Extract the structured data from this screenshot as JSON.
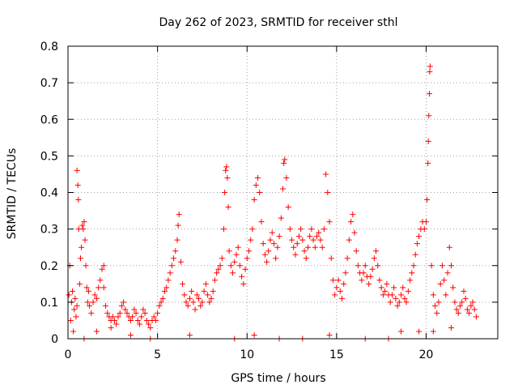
{
  "chart_data": {
    "type": "scatter",
    "title": "Day 262 of 2023, SRMTID for receiver sthl",
    "xlabel": "GPS time / hours",
    "ylabel": "SRMTID / TECUs",
    "xlim": [
      0,
      24
    ],
    "ylim": [
      0,
      0.8
    ],
    "xticks": [
      0,
      5,
      10,
      15,
      20
    ],
    "xtick_labels": [
      "0",
      "5",
      "10",
      "15",
      "20"
    ],
    "yticks": [
      0,
      0.1,
      0.2,
      0.3,
      0.4,
      0.5,
      0.6,
      0.7,
      0.8
    ],
    "ytick_labels": [
      "0",
      "0.1",
      "0.2",
      "0.3",
      "0.4",
      "0.5",
      "0.6",
      "0.7",
      "0.8"
    ],
    "grid": true,
    "marker": "plus",
    "color": "#ff0000",
    "series": [
      {
        "name": "SRMTID",
        "points": [
          [
            0.05,
            0.12
          ],
          [
            0.1,
            0.2
          ],
          [
            0.15,
            0.05
          ],
          [
            0.2,
            0.1
          ],
          [
            0.25,
            0.13
          ],
          [
            0.3,
            0.02
          ],
          [
            0.35,
            0.08
          ],
          [
            0.4,
            0.11
          ],
          [
            0.45,
            0.06
          ],
          [
            0.5,
            0.09
          ],
          [
            0.5,
            0.46
          ],
          [
            0.55,
            0.42
          ],
          [
            0.58,
            0.38
          ],
          [
            0.6,
            0.3
          ],
          [
            0.65,
            0.15
          ],
          [
            0.7,
            0.22
          ],
          [
            0.75,
            0.25
          ],
          [
            0.8,
            0.31
          ],
          [
            0.85,
            0.3
          ],
          [
            0.9,
            0.32
          ],
          [
            0.95,
            0.27
          ],
          [
            1.0,
            0.2
          ],
          [
            1.05,
            0.14
          ],
          [
            1.1,
            0.1
          ],
          [
            1.15,
            0.13
          ],
          [
            1.2,
            0.09
          ],
          [
            1.3,
            0.07
          ],
          [
            1.4,
            0.1
          ],
          [
            1.5,
            0.12
          ],
          [
            1.6,
            0.11
          ],
          [
            1.7,
            0.14
          ],
          [
            1.8,
            0.16
          ],
          [
            1.9,
            0.19
          ],
          [
            2.0,
            0.2
          ],
          [
            2.0,
            0.14
          ],
          [
            2.1,
            0.09
          ],
          [
            2.2,
            0.07
          ],
          [
            2.3,
            0.06
          ],
          [
            2.4,
            0.05
          ],
          [
            2.5,
            0.06
          ],
          [
            2.6,
            0.05
          ],
          [
            2.7,
            0.04
          ],
          [
            2.8,
            0.06
          ],
          [
            2.9,
            0.07
          ],
          [
            3.0,
            0.09
          ],
          [
            3.1,
            0.1
          ],
          [
            3.2,
            0.08
          ],
          [
            3.3,
            0.07
          ],
          [
            3.4,
            0.06
          ],
          [
            3.5,
            0.05
          ],
          [
            3.6,
            0.06
          ],
          [
            3.7,
            0.08
          ],
          [
            3.8,
            0.07
          ],
          [
            3.9,
            0.05
          ],
          [
            4.0,
            0.04
          ],
          [
            4.1,
            0.06
          ],
          [
            4.2,
            0.08
          ],
          [
            4.3,
            0.07
          ],
          [
            4.4,
            0.05
          ],
          [
            4.5,
            0.04
          ],
          [
            4.6,
            0.03
          ],
          [
            4.7,
            0.05
          ],
          [
            4.8,
            0.06
          ],
          [
            4.9,
            0.05
          ],
          [
            5.0,
            0.07
          ],
          [
            5.1,
            0.09
          ],
          [
            5.2,
            0.1
          ],
          [
            5.3,
            0.11
          ],
          [
            5.4,
            0.13
          ],
          [
            5.5,
            0.14
          ],
          [
            5.6,
            0.16
          ],
          [
            5.7,
            0.18
          ],
          [
            5.8,
            0.2
          ],
          [
            5.9,
            0.22
          ],
          [
            6.0,
            0.24
          ],
          [
            6.1,
            0.27
          ],
          [
            6.15,
            0.31
          ],
          [
            6.2,
            0.34
          ],
          [
            6.3,
            0.21
          ],
          [
            6.4,
            0.15
          ],
          [
            6.5,
            0.12
          ],
          [
            6.6,
            0.1
          ],
          [
            6.7,
            0.09
          ],
          [
            6.8,
            0.11
          ],
          [
            6.9,
            0.13
          ],
          [
            7.0,
            0.1
          ],
          [
            7.1,
            0.08
          ],
          [
            7.2,
            0.12
          ],
          [
            7.3,
            0.11
          ],
          [
            7.4,
            0.09
          ],
          [
            7.5,
            0.1
          ],
          [
            7.6,
            0.13
          ],
          [
            7.7,
            0.15
          ],
          [
            7.8,
            0.12
          ],
          [
            7.9,
            0.1
          ],
          [
            8.0,
            0.11
          ],
          [
            8.1,
            0.13
          ],
          [
            8.2,
            0.16
          ],
          [
            8.3,
            0.18
          ],
          [
            8.4,
            0.19
          ],
          [
            8.5,
            0.2
          ],
          [
            8.6,
            0.22
          ],
          [
            8.7,
            0.3
          ],
          [
            8.75,
            0.4
          ],
          [
            8.8,
            0.46
          ],
          [
            8.85,
            0.47
          ],
          [
            8.9,
            0.44
          ],
          [
            8.95,
            0.36
          ],
          [
            9.0,
            0.24
          ],
          [
            9.1,
            0.2
          ],
          [
            9.2,
            0.18
          ],
          [
            9.3,
            0.21
          ],
          [
            9.4,
            0.23
          ],
          [
            9.5,
            0.25
          ],
          [
            9.6,
            0.2
          ],
          [
            9.7,
            0.17
          ],
          [
            9.8,
            0.15
          ],
          [
            9.9,
            0.19
          ],
          [
            10.0,
            0.22
          ],
          [
            10.1,
            0.24
          ],
          [
            10.2,
            0.27
          ],
          [
            10.3,
            0.3
          ],
          [
            10.4,
            0.38
          ],
          [
            10.5,
            0.42
          ],
          [
            10.6,
            0.44
          ],
          [
            10.7,
            0.4
          ],
          [
            10.8,
            0.32
          ],
          [
            10.9,
            0.26
          ],
          [
            11.0,
            0.23
          ],
          [
            11.1,
            0.21
          ],
          [
            11.2,
            0.24
          ],
          [
            11.3,
            0.27
          ],
          [
            11.4,
            0.29
          ],
          [
            11.5,
            0.26
          ],
          [
            11.6,
            0.22
          ],
          [
            11.7,
            0.25
          ],
          [
            11.8,
            0.28
          ],
          [
            11.9,
            0.33
          ],
          [
            12.0,
            0.41
          ],
          [
            12.05,
            0.48
          ],
          [
            12.1,
            0.49
          ],
          [
            12.2,
            0.44
          ],
          [
            12.3,
            0.36
          ],
          [
            12.4,
            0.3
          ],
          [
            12.5,
            0.27
          ],
          [
            12.6,
            0.25
          ],
          [
            12.7,
            0.23
          ],
          [
            12.8,
            0.26
          ],
          [
            12.9,
            0.28
          ],
          [
            13.0,
            0.3
          ],
          [
            13.1,
            0.27
          ],
          [
            13.2,
            0.24
          ],
          [
            13.3,
            0.22
          ],
          [
            13.4,
            0.25
          ],
          [
            13.5,
            0.28
          ],
          [
            13.6,
            0.3
          ],
          [
            13.7,
            0.27
          ],
          [
            13.8,
            0.25
          ],
          [
            13.9,
            0.28
          ],
          [
            14.0,
            0.29
          ],
          [
            14.1,
            0.27
          ],
          [
            14.2,
            0.25
          ],
          [
            14.3,
            0.3
          ],
          [
            14.4,
            0.45
          ],
          [
            14.5,
            0.4
          ],
          [
            14.6,
            0.32
          ],
          [
            14.7,
            0.22
          ],
          [
            14.8,
            0.16
          ],
          [
            14.9,
            0.12
          ],
          [
            15.0,
            0.14
          ],
          [
            15.1,
            0.16
          ],
          [
            15.2,
            0.13
          ],
          [
            15.3,
            0.11
          ],
          [
            15.4,
            0.15
          ],
          [
            15.5,
            0.18
          ],
          [
            15.6,
            0.22
          ],
          [
            15.7,
            0.27
          ],
          [
            15.8,
            0.32
          ],
          [
            15.9,
            0.34
          ],
          [
            16.0,
            0.29
          ],
          [
            16.1,
            0.24
          ],
          [
            16.2,
            0.2
          ],
          [
            16.3,
            0.18
          ],
          [
            16.4,
            0.16
          ],
          [
            16.5,
            0.18
          ],
          [
            16.6,
            0.2
          ],
          [
            16.7,
            0.17
          ],
          [
            16.8,
            0.15
          ],
          [
            16.9,
            0.17
          ],
          [
            17.0,
            0.19
          ],
          [
            17.1,
            0.22
          ],
          [
            17.2,
            0.24
          ],
          [
            17.3,
            0.2
          ],
          [
            17.4,
            0.16
          ],
          [
            17.5,
            0.14
          ],
          [
            17.6,
            0.12
          ],
          [
            17.7,
            0.13
          ],
          [
            17.8,
            0.15
          ],
          [
            17.9,
            0.12
          ],
          [
            18.0,
            0.1
          ],
          [
            18.1,
            0.12
          ],
          [
            18.2,
            0.14
          ],
          [
            18.3,
            0.11
          ],
          [
            18.4,
            0.09
          ],
          [
            18.5,
            0.1
          ],
          [
            18.6,
            0.12
          ],
          [
            18.7,
            0.14
          ],
          [
            18.8,
            0.11
          ],
          [
            18.9,
            0.1
          ],
          [
            19.0,
            0.13
          ],
          [
            19.1,
            0.16
          ],
          [
            19.2,
            0.18
          ],
          [
            19.3,
            0.2
          ],
          [
            19.4,
            0.23
          ],
          [
            19.5,
            0.26
          ],
          [
            19.6,
            0.28
          ],
          [
            19.7,
            0.3
          ],
          [
            19.8,
            0.32
          ],
          [
            19.9,
            0.3
          ],
          [
            20.0,
            0.32
          ],
          [
            20.05,
            0.38
          ],
          [
            20.1,
            0.48
          ],
          [
            20.12,
            0.54
          ],
          [
            20.15,
            0.61
          ],
          [
            20.18,
            0.67
          ],
          [
            20.2,
            0.73
          ],
          [
            20.22,
            0.745
          ],
          [
            20.3,
            0.2
          ],
          [
            20.4,
            0.12
          ],
          [
            20.5,
            0.09
          ],
          [
            20.6,
            0.07
          ],
          [
            20.7,
            0.1
          ],
          [
            20.8,
            0.15
          ],
          [
            20.9,
            0.2
          ],
          [
            21.0,
            0.16
          ],
          [
            21.1,
            0.12
          ],
          [
            21.2,
            0.18
          ],
          [
            21.3,
            0.25
          ],
          [
            21.4,
            0.2
          ],
          [
            21.5,
            0.14
          ],
          [
            21.6,
            0.1
          ],
          [
            21.7,
            0.08
          ],
          [
            21.8,
            0.07
          ],
          [
            21.9,
            0.09
          ],
          [
            22.0,
            0.1
          ],
          [
            22.1,
            0.13
          ],
          [
            22.2,
            0.11
          ],
          [
            22.3,
            0.08
          ],
          [
            22.4,
            0.07
          ],
          [
            22.5,
            0.09
          ],
          [
            22.6,
            0.1
          ],
          [
            22.7,
            0.08
          ],
          [
            22.8,
            0.06
          ],
          [
            1.6,
            0.02
          ],
          [
            3.5,
            0.01
          ],
          [
            4.6,
            0.0
          ],
          [
            6.8,
            0.01
          ],
          [
            9.3,
            0.0
          ],
          [
            10.4,
            0.01
          ],
          [
            11.8,
            0.0
          ],
          [
            13.1,
            0.0
          ],
          [
            14.6,
            0.01
          ],
          [
            16.6,
            0.0
          ],
          [
            17.9,
            0.0
          ],
          [
            18.6,
            0.02
          ],
          [
            19.6,
            0.02
          ],
          [
            20.4,
            0.02
          ],
          [
            21.4,
            0.03
          ],
          [
            0.9,
            0.0
          ],
          [
            2.4,
            0.03
          ]
        ]
      }
    ]
  }
}
